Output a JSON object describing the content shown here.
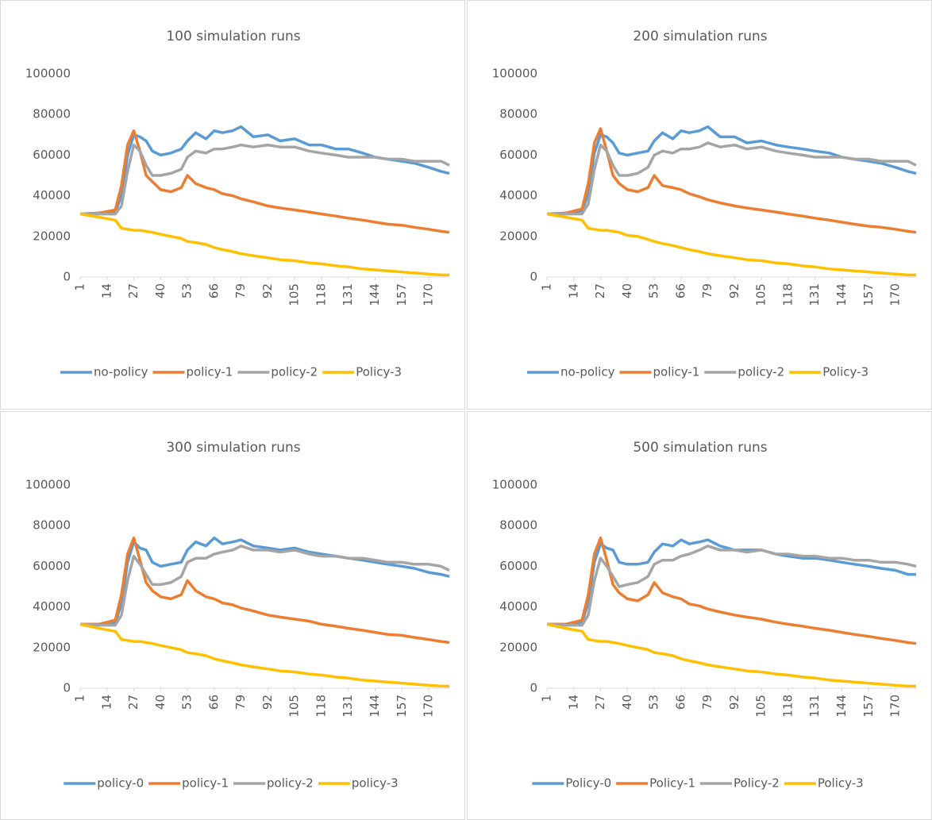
{
  "chart_data": [
    {
      "type": "line",
      "title": "100 simulation runs",
      "x": [
        1,
        10,
        18,
        21,
        24,
        27,
        30,
        33,
        36,
        40,
        45,
        50,
        53,
        57,
        62,
        66,
        70,
        75,
        79,
        85,
        92,
        98,
        105,
        112,
        118,
        125,
        131,
        138,
        144,
        150,
        157,
        163,
        170,
        176,
        180
      ],
      "xlim": [
        1,
        180
      ],
      "xticks": [
        1,
        14,
        27,
        40,
        53,
        66,
        79,
        92,
        105,
        118,
        131,
        144,
        157,
        170
      ],
      "ylim": [
        0,
        100000
      ],
      "yticks": [
        0,
        20000,
        40000,
        60000,
        80000,
        100000
      ],
      "grid": false,
      "legend": "bottom",
      "series": [
        {
          "name": "no-policy",
          "color": "#5b9bd5",
          "values": [
            31000,
            31500,
            32000,
            40000,
            60000,
            70000,
            69000,
            67000,
            62000,
            60000,
            61000,
            63000,
            67000,
            71000,
            68000,
            72000,
            71000,
            72000,
            74000,
            69000,
            70000,
            67000,
            68000,
            65000,
            65000,
            63000,
            63000,
            61000,
            59000,
            58000,
            57000,
            56000,
            54000,
            52000,
            51000
          ]
        },
        {
          "name": "policy-1",
          "color": "#ed7d31",
          "values": [
            31000,
            31500,
            33000,
            45000,
            65000,
            72000,
            62000,
            50000,
            47000,
            43000,
            42000,
            44000,
            50000,
            46000,
            44000,
            43000,
            41000,
            40000,
            38500,
            37000,
            35000,
            34000,
            33000,
            32000,
            31000,
            30000,
            29000,
            28000,
            27000,
            26000,
            25500,
            24500,
            23500,
            22500,
            22000
          ]
        },
        {
          "name": "policy-2",
          "color": "#a5a5a5",
          "values": [
            31000,
            31000,
            31000,
            35000,
            52000,
            65000,
            62000,
            55000,
            50000,
            50000,
            51000,
            53000,
            59000,
            62000,
            61000,
            63000,
            63000,
            64000,
            65000,
            64000,
            65000,
            64000,
            64000,
            62000,
            61000,
            60000,
            59000,
            59000,
            59000,
            58000,
            58000,
            57000,
            57000,
            57000,
            55000
          ]
        },
        {
          "name": "Policy-3",
          "color": "#ffc000",
          "values": [
            31000,
            29500,
            28000,
            24000,
            23500,
            23000,
            23000,
            22500,
            22000,
            21000,
            20000,
            19000,
            17500,
            17000,
            16000,
            14500,
            13500,
            12500,
            11500,
            10500,
            9500,
            8500,
            8000,
            7000,
            6500,
            5500,
            5000,
            4000,
            3500,
            3000,
            2500,
            2000,
            1500,
            1000,
            1000
          ]
        }
      ]
    },
    {
      "type": "line",
      "title": "200 simulation runs",
      "x": [
        1,
        10,
        18,
        21,
        24,
        27,
        30,
        33,
        36,
        40,
        45,
        50,
        53,
        57,
        62,
        66,
        70,
        75,
        79,
        85,
        92,
        98,
        105,
        112,
        118,
        125,
        131,
        138,
        144,
        150,
        157,
        163,
        170,
        176,
        180
      ],
      "xlim": [
        1,
        180
      ],
      "xticks": [
        1,
        14,
        27,
        40,
        53,
        66,
        79,
        92,
        105,
        118,
        131,
        144,
        157,
        170
      ],
      "ylim": [
        0,
        100000
      ],
      "yticks": [
        0,
        20000,
        40000,
        60000,
        80000,
        100000
      ],
      "grid": false,
      "legend": "bottom",
      "series": [
        {
          "name": "no-policy",
          "color": "#5b9bd5",
          "values": [
            31000,
            31500,
            32500,
            41000,
            61000,
            70000,
            69000,
            66000,
            61000,
            60000,
            61000,
            62000,
            67000,
            71000,
            68000,
            72000,
            71000,
            72000,
            74000,
            69000,
            69000,
            66000,
            67000,
            65000,
            64000,
            63000,
            62000,
            61000,
            59000,
            58000,
            57000,
            56000,
            54000,
            52000,
            51000
          ]
        },
        {
          "name": "policy-1",
          "color": "#ed7d31",
          "values": [
            31000,
            31500,
            33500,
            46000,
            66000,
            73000,
            62000,
            50000,
            46000,
            43000,
            42000,
            44000,
            50000,
            45000,
            44000,
            43000,
            41000,
            39500,
            38000,
            36500,
            35000,
            34000,
            33000,
            32000,
            31000,
            30000,
            29000,
            28000,
            27000,
            26000,
            25000,
            24500,
            23500,
            22500,
            22000
          ]
        },
        {
          "name": "policy-2",
          "color": "#a5a5a5",
          "values": [
            31000,
            31000,
            31000,
            36000,
            53000,
            65000,
            62000,
            55000,
            50000,
            50000,
            51000,
            54000,
            60000,
            62000,
            61000,
            63000,
            63000,
            64000,
            66000,
            64000,
            65000,
            63000,
            64000,
            62000,
            61000,
            60000,
            59000,
            59000,
            59000,
            58000,
            58000,
            57000,
            57000,
            57000,
            55000
          ]
        },
        {
          "name": "Policy-3",
          "color": "#ffc000",
          "values": [
            31000,
            29500,
            28000,
            24000,
            23500,
            23000,
            23000,
            22500,
            22000,
            20500,
            20000,
            18500,
            17500,
            16500,
            15500,
            14500,
            13500,
            12500,
            11500,
            10500,
            9500,
            8500,
            8000,
            7000,
            6500,
            5500,
            5000,
            4000,
            3500,
            3000,
            2500,
            2000,
            1500,
            1000,
            1000
          ]
        }
      ]
    },
    {
      "type": "line",
      "title": "300 simulation runs",
      "x": [
        1,
        10,
        18,
        21,
        24,
        27,
        30,
        33,
        36,
        40,
        45,
        50,
        53,
        57,
        62,
        66,
        70,
        75,
        79,
        85,
        92,
        98,
        105,
        112,
        118,
        125,
        131,
        138,
        144,
        150,
        157,
        163,
        170,
        176,
        180
      ],
      "xlim": [
        1,
        180
      ],
      "xticks": [
        1,
        14,
        27,
        40,
        53,
        66,
        79,
        92,
        105,
        118,
        131,
        144,
        157,
        170
      ],
      "ylim": [
        0,
        100000
      ],
      "yticks": [
        0,
        20000,
        40000,
        60000,
        80000,
        100000
      ],
      "grid": false,
      "legend": "bottom",
      "series": [
        {
          "name": "policy-0",
          "color": "#5b9bd5",
          "values": [
            31500,
            31500,
            32000,
            42000,
            62000,
            72000,
            69000,
            68000,
            62000,
            60000,
            61000,
            62000,
            68000,
            72000,
            70000,
            74000,
            71000,
            72000,
            73000,
            70000,
            69000,
            68000,
            69000,
            67000,
            66000,
            65000,
            64000,
            63000,
            62000,
            61000,
            60000,
            59000,
            57000,
            56000,
            55000
          ]
        },
        {
          "name": "policy-1",
          "color": "#ed7d31",
          "values": [
            31500,
            31500,
            33500,
            46000,
            66000,
            74000,
            63000,
            52000,
            48000,
            45000,
            44000,
            46000,
            53000,
            48000,
            45000,
            44000,
            42000,
            41000,
            39500,
            38000,
            36000,
            35000,
            34000,
            33000,
            31500,
            30500,
            29500,
            28500,
            27500,
            26500,
            26000,
            25000,
            24000,
            23000,
            22500
          ]
        },
        {
          "name": "policy-2",
          "color": "#a5a5a5",
          "values": [
            31500,
            31000,
            31000,
            36000,
            53000,
            65000,
            61000,
            56000,
            51000,
            51000,
            52000,
            55000,
            62000,
            64000,
            64000,
            66000,
            67000,
            68000,
            70000,
            68000,
            68000,
            67000,
            68000,
            66000,
            65000,
            65000,
            64000,
            64000,
            63000,
            62000,
            62000,
            61000,
            61000,
            60000,
            58000
          ]
        },
        {
          "name": "policy-3",
          "color": "#ffc000",
          "values": [
            31500,
            29500,
            28000,
            24000,
            23500,
            23000,
            23000,
            22500,
            22000,
            21000,
            20000,
            19000,
            17500,
            17000,
            16000,
            14500,
            13500,
            12500,
            11500,
            10500,
            9500,
            8500,
            8000,
            7000,
            6500,
            5500,
            5000,
            4000,
            3500,
            3000,
            2500,
            2000,
            1500,
            1000,
            1000
          ]
        }
      ]
    },
    {
      "type": "line",
      "title": "500 simulation runs",
      "x": [
        1,
        10,
        18,
        21,
        24,
        27,
        30,
        33,
        36,
        40,
        45,
        50,
        53,
        57,
        62,
        66,
        70,
        75,
        79,
        85,
        92,
        98,
        105,
        112,
        118,
        125,
        131,
        138,
        144,
        150,
        157,
        163,
        170,
        176,
        180
      ],
      "xlim": [
        1,
        180
      ],
      "xticks": [
        1,
        14,
        27,
        40,
        53,
        66,
        79,
        92,
        105,
        118,
        131,
        144,
        157,
        170
      ],
      "ylim": [
        0,
        100000
      ],
      "yticks": [
        0,
        20000,
        40000,
        60000,
        80000,
        100000
      ],
      "grid": false,
      "legend": "bottom",
      "series": [
        {
          "name": "Policy-0",
          "color": "#5b9bd5",
          "values": [
            31500,
            31500,
            32500,
            42000,
            62000,
            71000,
            69000,
            68000,
            62000,
            61000,
            61000,
            62000,
            67000,
            71000,
            70000,
            73000,
            71000,
            72000,
            73000,
            70000,
            68000,
            68000,
            68000,
            66000,
            65000,
            64000,
            64000,
            63000,
            62000,
            61000,
            60000,
            59000,
            58000,
            56000,
            56000
          ]
        },
        {
          "name": "Policy-1",
          "color": "#ed7d31",
          "values": [
            31500,
            31500,
            33500,
            46000,
            66000,
            74000,
            63000,
            51000,
            47000,
            44000,
            43000,
            46000,
            52000,
            47000,
            45000,
            44000,
            41500,
            40500,
            39000,
            37500,
            36000,
            35000,
            34000,
            32500,
            31500,
            30500,
            29500,
            28500,
            27500,
            26500,
            25500,
            24500,
            23500,
            22500,
            22000
          ]
        },
        {
          "name": "Policy-2",
          "color": "#a5a5a5",
          "values": [
            31500,
            31000,
            31000,
            36000,
            53000,
            64000,
            60000,
            55000,
            50000,
            51000,
            52000,
            55000,
            61000,
            63000,
            63000,
            65000,
            66000,
            68000,
            70000,
            68000,
            68000,
            67000,
            68000,
            66000,
            66000,
            65000,
            65000,
            64000,
            64000,
            63000,
            63000,
            62000,
            62000,
            61000,
            60000
          ]
        },
        {
          "name": "Policy-3",
          "color": "#ffc000",
          "values": [
            31500,
            29500,
            28000,
            24000,
            23500,
            23000,
            23000,
            22500,
            22000,
            21000,
            20000,
            19000,
            17500,
            17000,
            16000,
            14500,
            13500,
            12500,
            11500,
            10500,
            9500,
            8500,
            8000,
            7000,
            6500,
            5500,
            5000,
            4000,
            3500,
            3000,
            2500,
            2000,
            1500,
            1000,
            1000
          ]
        }
      ]
    }
  ]
}
